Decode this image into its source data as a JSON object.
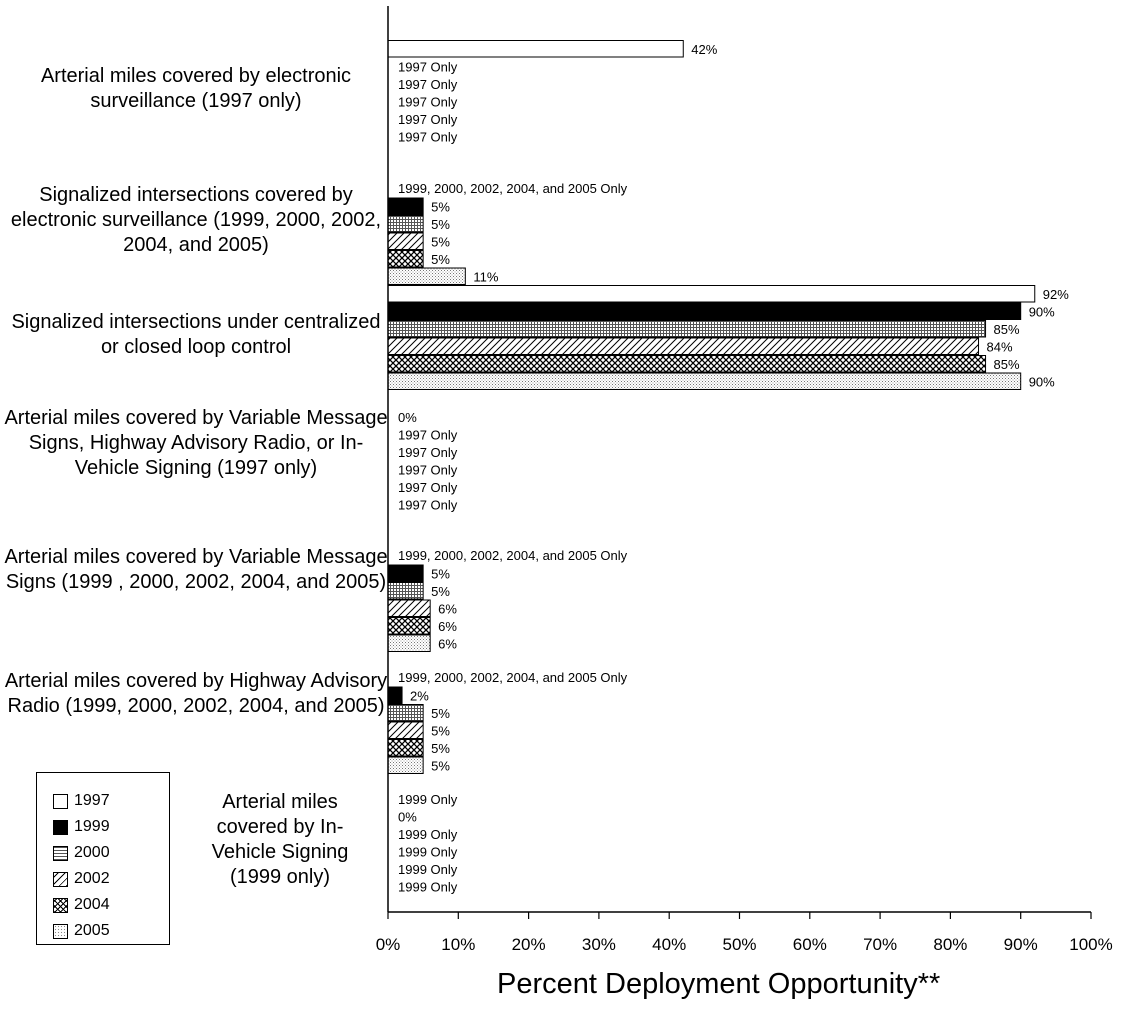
{
  "chart_data": {
    "type": "bar",
    "orientation": "horizontal",
    "xlabel": "Percent Deployment Opportunity**",
    "xlim": [
      0,
      100
    ],
    "xticks": [
      "0%",
      "10%",
      "20%",
      "30%",
      "40%",
      "50%",
      "60%",
      "70%",
      "80%",
      "90%",
      "100%"
    ],
    "legend_position": "bottom-left",
    "series_colors": {
      "1997": "#ffffff",
      "1999": "#000000",
      "2000": "#bdbdbd",
      "2002": "#ffffff",
      "2004": "#555555",
      "2005": "#e8e8e8"
    },
    "series": [
      {
        "name": "1997",
        "pattern": "white",
        "values": [
          42,
          null,
          92,
          0,
          null,
          null,
          null
        ]
      },
      {
        "name": "1999",
        "pattern": "black",
        "values": [
          null,
          5,
          90,
          null,
          5,
          2,
          0
        ]
      },
      {
        "name": "2000",
        "pattern": "fine-grid",
        "values": [
          null,
          5,
          85,
          null,
          5,
          5,
          null
        ]
      },
      {
        "name": "2002",
        "pattern": "diagonal-hatch",
        "values": [
          null,
          5,
          84,
          null,
          6,
          5,
          null
        ]
      },
      {
        "name": "2004",
        "pattern": "crosshatch",
        "values": [
          null,
          5,
          85,
          null,
          6,
          5,
          null
        ]
      },
      {
        "name": "2005",
        "pattern": "dots",
        "values": [
          null,
          11,
          90,
          null,
          6,
          5,
          null
        ]
      }
    ],
    "categories": [
      {
        "label": "Arterial miles covered by electronic surveillance (1997 only)",
        "header": "",
        "bar_labels": [
          "42%",
          "1997 Only",
          "1997 Only",
          "1997 Only",
          "1997 Only",
          "1997 Only"
        ]
      },
      {
        "label": "Signalized intersections covered by electronic surveillance (1999, 2000, 2002, 2004, and 2005)",
        "header": "1999, 2000, 2002, 2004, and 2005 Only",
        "bar_labels": [
          "",
          "5%",
          "5%",
          "5%",
          "5%",
          "11%"
        ]
      },
      {
        "label": "Signalized intersections under centralized or closed loop control",
        "header": "",
        "bar_labels": [
          "92%",
          "90%",
          "85%",
          "84%",
          "85%",
          "90%"
        ]
      },
      {
        "label": "Arterial miles covered by Variable Message Signs, Highway Advisory Radio, or In-Vehicle Signing (1997 only)",
        "header": "",
        "bar_labels": [
          "0%",
          "1997 Only",
          "1997 Only",
          "1997 Only",
          "1997 Only",
          "1997 Only"
        ]
      },
      {
        "label": "Arterial miles covered by Variable Message Signs (1999 , 2000, 2002, 2004, and 2005)",
        "header": "1999, 2000, 2002, 2004, and 2005 Only",
        "bar_labels": [
          "",
          "5%",
          "5%",
          "6%",
          "6%",
          "6%"
        ]
      },
      {
        "label": "Arterial miles covered by Highway Advisory Radio (1999, 2000, 2002, 2004, and 2005)",
        "header": "1999, 2000, 2002, 2004, and 2005 Only",
        "bar_labels": [
          "",
          "2%",
          "5%",
          "5%",
          "5%",
          "5%"
        ]
      },
      {
        "label": "Arterial miles covered by In-Vehicle Signing (1999 only)",
        "header": "",
        "bar_labels": [
          "1999 Only",
          "0%",
          "1999 Only",
          "1999 Only",
          "1999 Only",
          "1999 Only"
        ]
      }
    ]
  }
}
